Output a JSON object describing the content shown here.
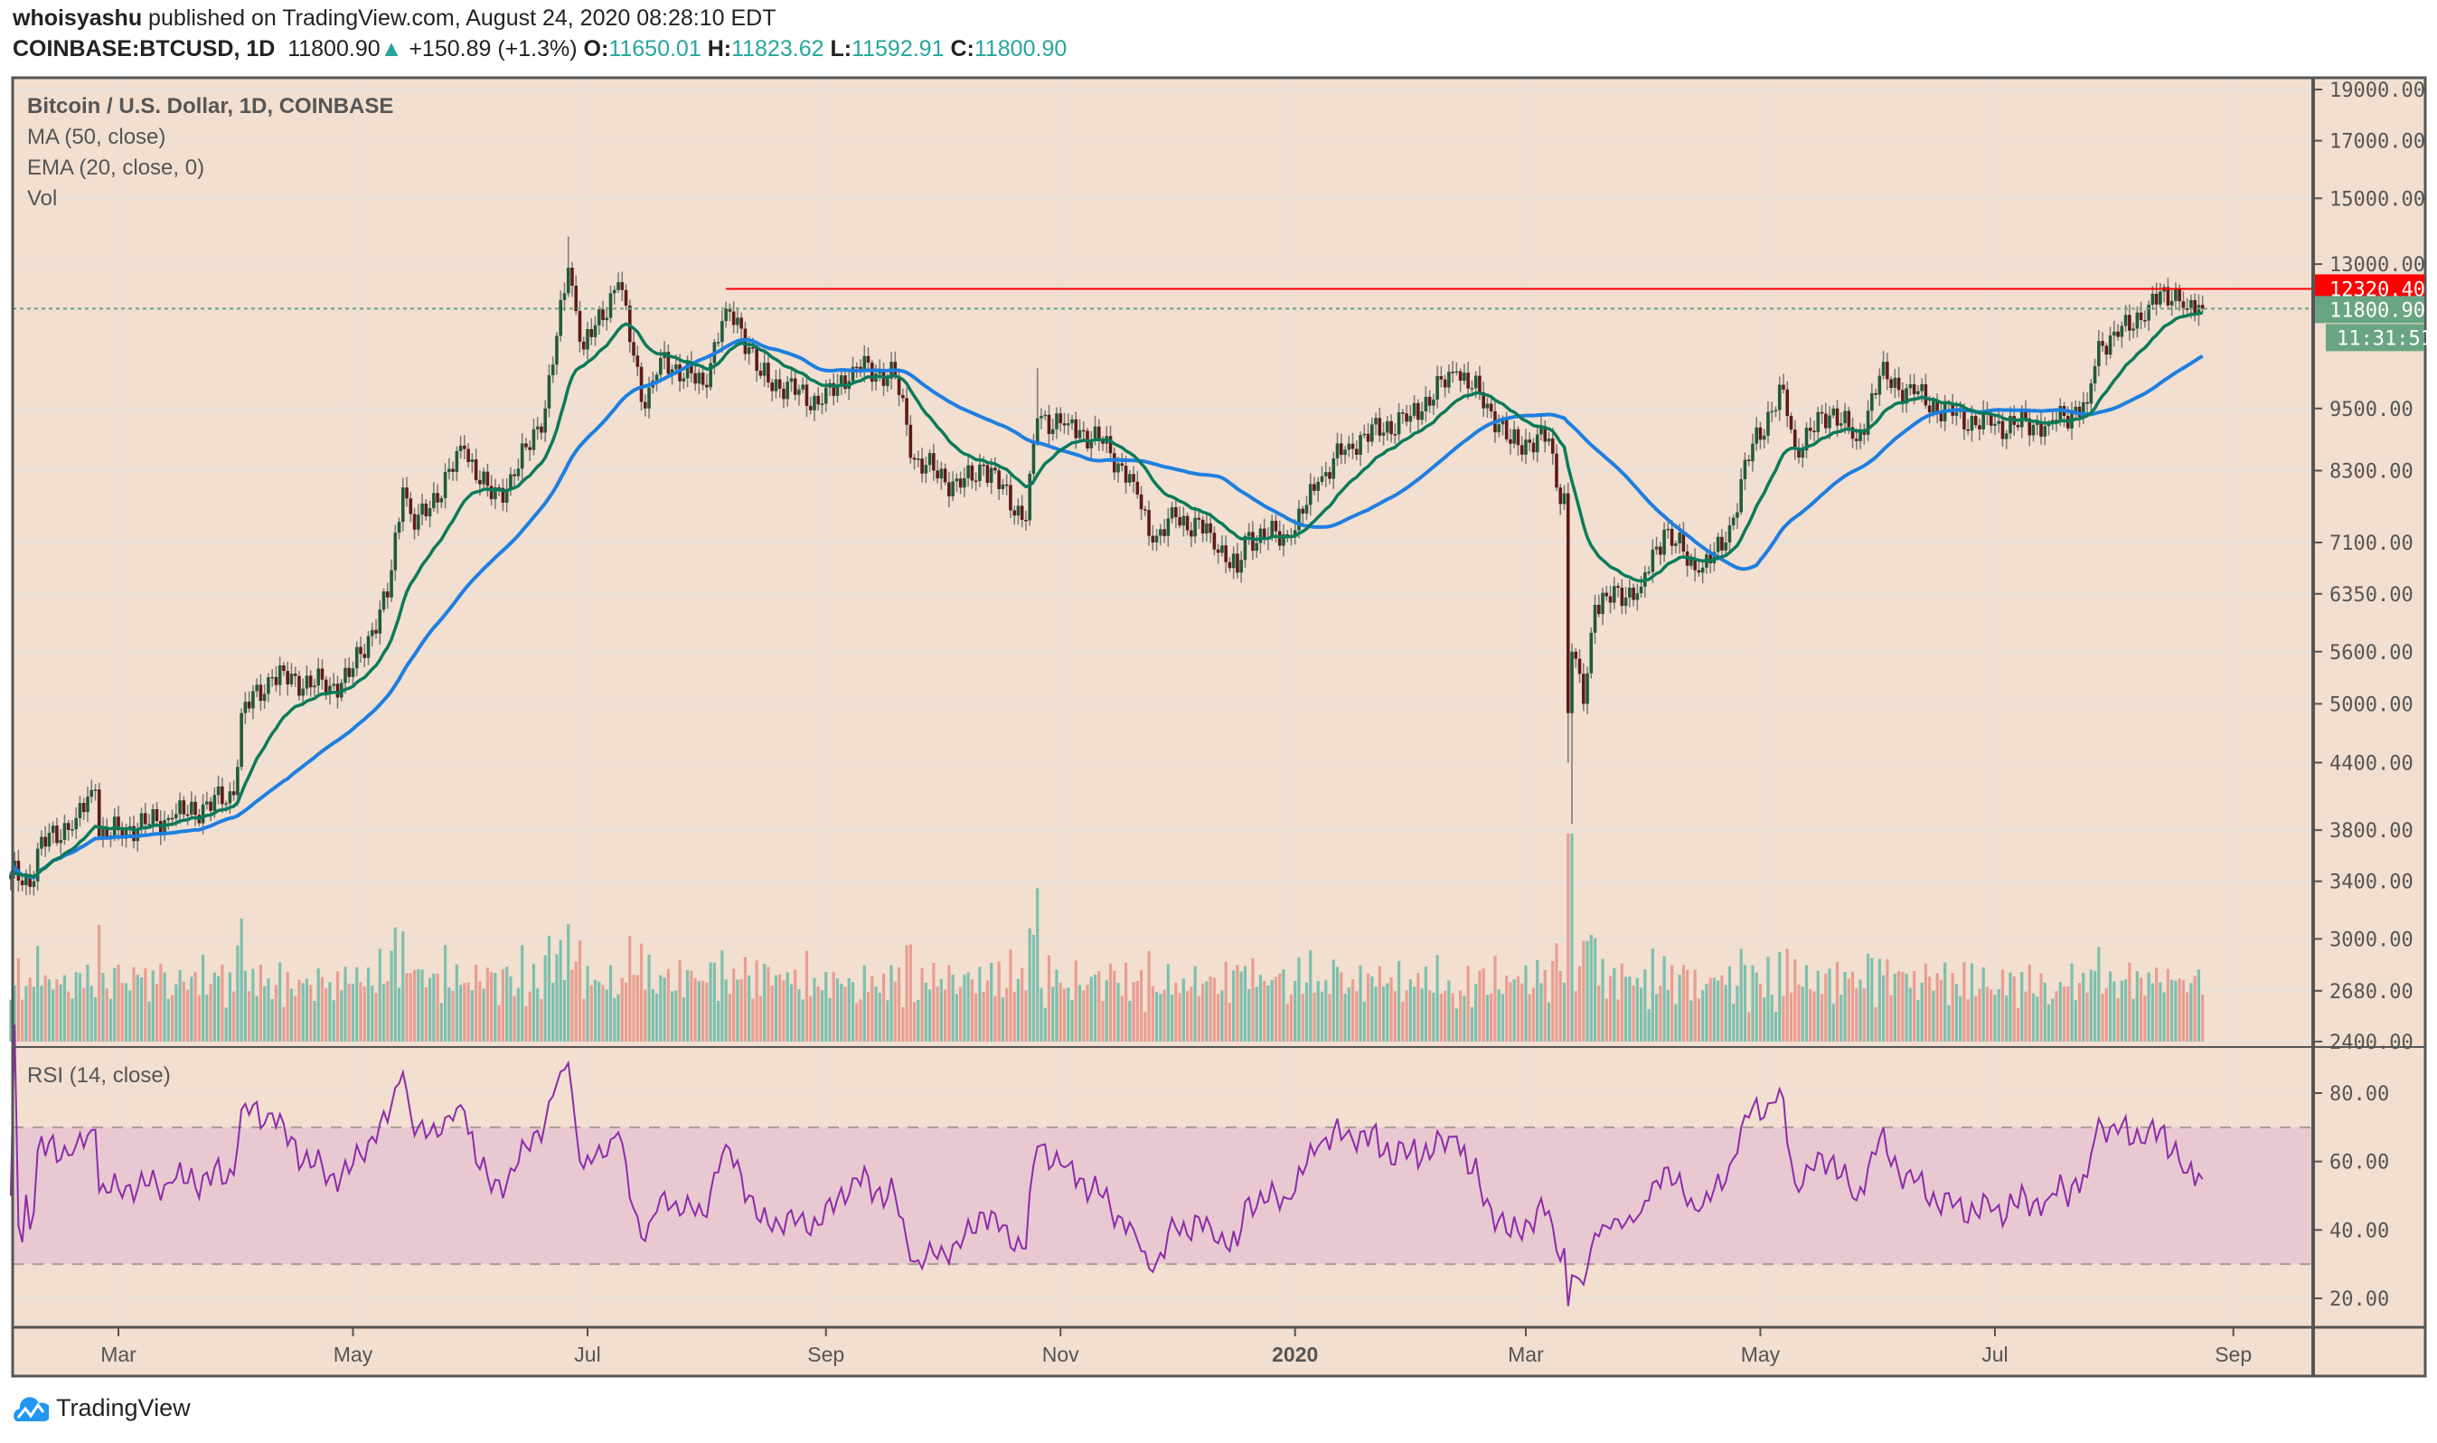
{
  "header": {
    "author": "whoisyashu",
    "published_text": "published on TradingView.com, August 24, 2020 08:28:10 EDT",
    "symbol": "COINBASE:BTCUSD, 1D",
    "last": "11800.90",
    "change": "+150.89 (+1.3%)",
    "o_label": "O:",
    "o": "11650.01",
    "h_label": "H:",
    "h": "11823.62",
    "l_label": "L:",
    "l": "11592.91",
    "c_label": "C:",
    "c": "11800.90"
  },
  "legend": {
    "title": "Bitcoin / U.S. Dollar, 1D, COINBASE",
    "ma": "MA (50, close)",
    "ema": "EMA (20, close, 0)",
    "vol": "Vol",
    "rsi": "RSI (14, close)"
  },
  "footer": {
    "brand": "TradingView",
    "icon": "tradingview-cloud-logo"
  },
  "colors": {
    "background": "#f2dfcf",
    "up_candle": "#215a3a",
    "down_candle": "#5e1b17",
    "ma": "#1e7fe0",
    "ema": "#0b7a5b",
    "resistance": "#ff0000",
    "last_price": "#6aa583",
    "rsi": "#8e2bab",
    "rsi_band": "#e8c9d1",
    "vol_up": "#7dbfae",
    "vol_down": "#e89e92"
  },
  "chart_data": {
    "type": "candlestick",
    "interval": "1D",
    "price_scale": "log",
    "price_ticks": [
      "19000.00",
      "17000.00",
      "15000.00",
      "13000.00",
      "9500.00",
      "8300.00",
      "7100.00",
      "6350.00",
      "5600.00",
      "5000.00",
      "4400.00",
      "3800.00",
      "3400.00",
      "3000.00",
      "2680.00",
      "2400.00"
    ],
    "ylim": [
      2400,
      19000
    ],
    "x_range": [
      "2019-02-01",
      "2020-09-20"
    ],
    "time_ticks": [
      {
        "label": "Mar",
        "date": "2019-03-01"
      },
      {
        "label": "May",
        "date": "2019-05-01"
      },
      {
        "label": "Jul",
        "date": "2019-07-01"
      },
      {
        "label": "Sep",
        "date": "2019-09-01"
      },
      {
        "label": "Nov",
        "date": "2019-11-01"
      },
      {
        "label": "2020",
        "date": "2020-01-01"
      },
      {
        "label": "Mar",
        "date": "2020-03-01"
      },
      {
        "label": "May",
        "date": "2020-05-01"
      },
      {
        "label": "Jul",
        "date": "2020-07-01"
      },
      {
        "label": "Sep",
        "date": "2020-09-01"
      }
    ],
    "closes": [
      [
        "2019-02-01",
        3450
      ],
      [
        "2019-02-07",
        3400
      ],
      [
        "2019-02-08",
        3650
      ],
      [
        "2019-02-18",
        3900
      ],
      [
        "2019-02-23",
        4150
      ],
      [
        "2019-02-24",
        3750
      ],
      [
        "2019-03-01",
        3800
      ],
      [
        "2019-03-15",
        3900
      ],
      [
        "2019-03-31",
        4100
      ],
      [
        "2019-04-02",
        4900
      ],
      [
        "2019-04-10",
        5300
      ],
      [
        "2019-04-25",
        5200
      ],
      [
        "2019-04-30",
        5300
      ],
      [
        "2019-05-10",
        6300
      ],
      [
        "2019-05-14",
        8000
      ],
      [
        "2019-05-17",
        7300
      ],
      [
        "2019-05-30",
        8700
      ],
      [
        "2019-06-06",
        7800
      ],
      [
        "2019-06-12",
        8200
      ],
      [
        "2019-06-20",
        9500
      ],
      [
        "2019-06-26",
        12900
      ],
      [
        "2019-06-30",
        10800
      ],
      [
        "2019-07-09",
        12500
      ],
      [
        "2019-07-16",
        9500
      ],
      [
        "2019-07-20",
        10600
      ],
      [
        "2019-07-31",
        10000
      ],
      [
        "2019-08-06",
        11800
      ],
      [
        "2019-08-10",
        11300
      ],
      [
        "2019-08-15",
        10200
      ],
      [
        "2019-08-31",
        9600
      ],
      [
        "2019-09-08",
        10400
      ],
      [
        "2019-09-19",
        10200
      ],
      [
        "2019-09-24",
        8500
      ],
      [
        "2019-10-06",
        8000
      ],
      [
        "2019-10-12",
        8400
      ],
      [
        "2019-10-23",
        7450
      ],
      [
        "2019-10-26",
        9300
      ],
      [
        "2019-11-03",
        9200
      ],
      [
        "2019-11-12",
        8800
      ],
      [
        "2019-11-20",
        8100
      ],
      [
        "2019-11-25",
        7100
      ],
      [
        "2019-12-01",
        7500
      ],
      [
        "2019-12-10",
        7250
      ],
      [
        "2019-12-17",
        6650
      ],
      [
        "2019-12-19",
        7200
      ],
      [
        "2019-12-31",
        7200
      ],
      [
        "2020-01-07",
        8100
      ],
      [
        "2020-01-15",
        8800
      ],
      [
        "2020-01-31",
        9350
      ],
      [
        "2020-02-12",
        10300
      ],
      [
        "2020-02-20",
        9600
      ],
      [
        "2020-02-26",
        8800
      ],
      [
        "2020-03-07",
        8900
      ],
      [
        "2020-03-09",
        8000
      ],
      [
        "2020-03-11",
        7900
      ],
      [
        "2020-03-12",
        4900
      ],
      [
        "2020-03-13",
        5600
      ],
      [
        "2020-03-16",
        5000
      ],
      [
        "2020-03-19",
        6200
      ],
      [
        "2020-03-31",
        6450
      ],
      [
        "2020-04-06",
        7300
      ],
      [
        "2020-04-15",
        6650
      ],
      [
        "2020-04-22",
        7100
      ],
      [
        "2020-04-29",
        8800
      ],
      [
        "2020-05-07",
        9900
      ],
      [
        "2020-05-10",
        8700
      ],
      [
        "2020-05-20",
        9500
      ],
      [
        "2020-05-26",
        8850
      ],
      [
        "2020-06-01",
        10200
      ],
      [
        "2020-06-10",
        9800
      ],
      [
        "2020-06-20",
        9350
      ],
      [
        "2020-06-30",
        9150
      ],
      [
        "2020-07-15",
        9200
      ],
      [
        "2020-07-25",
        9600
      ],
      [
        "2020-07-28",
        11000
      ],
      [
        "2020-08-02",
        11100
      ],
      [
        "2020-08-10",
        11900
      ],
      [
        "2020-08-17",
        12300
      ],
      [
        "2020-08-20",
        11800
      ],
      [
        "2020-08-24",
        11800.9
      ]
    ],
    "extremes": [
      {
        "date": "2019-06-26",
        "high": 13800
      },
      {
        "date": "2019-10-26",
        "high": 10370
      },
      {
        "date": "2020-03-13",
        "low": 3850
      },
      {
        "date": "2020-03-12",
        "low": 4400
      }
    ],
    "indicators": {
      "ma_period": 50,
      "ema_period": 20,
      "rsi_period": 14
    },
    "resistance": {
      "value": 12320.4,
      "label": "12320.40",
      "from": "2019-08-06"
    },
    "last_price": {
      "value": 11800.9,
      "label": "11800.90",
      "countdown": "11:31:51"
    },
    "rsi_ticks": [
      "80.00",
      "60.00",
      "40.00",
      "20.00"
    ],
    "rsi_band": [
      30,
      70
    ]
  }
}
